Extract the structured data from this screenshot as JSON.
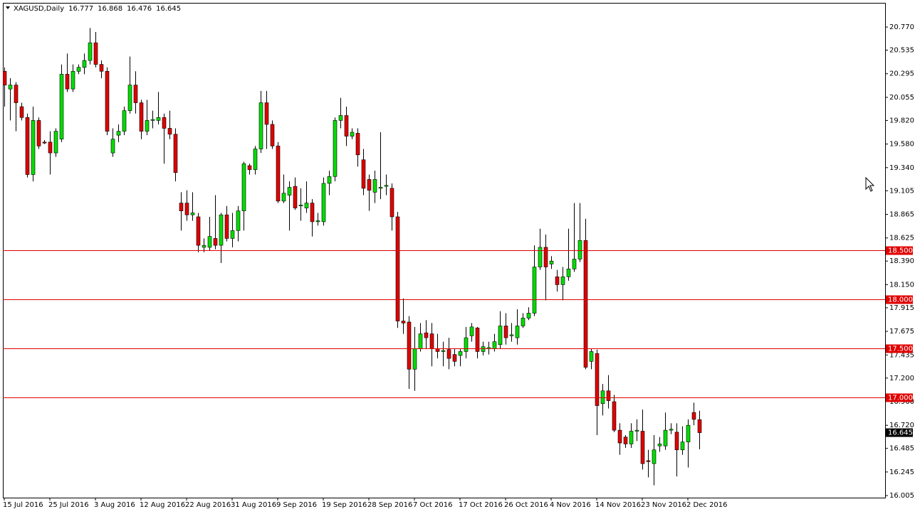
{
  "chart_data": {
    "type": "candlestick",
    "title": "XAGUSD,Daily",
    "categories": [
      "15 Jul 2016",
      null,
      null,
      null,
      null,
      null,
      null,
      null,
      "25 Jul 2016",
      null,
      null,
      null,
      null,
      null,
      null,
      null,
      "3 Aug 2016",
      null,
      null,
      null,
      null,
      null,
      null,
      null,
      "12 Aug 2016",
      null,
      null,
      null,
      null,
      null,
      null,
      null,
      "22 Aug 2016",
      null,
      null,
      null,
      null,
      null,
      null,
      null,
      "31 Aug 2016",
      null,
      null,
      null,
      null,
      null,
      null,
      null,
      "9 Sep 2016",
      null,
      null,
      null,
      null,
      null,
      null,
      null,
      "19 Sep 2016",
      null,
      null,
      null,
      null,
      null,
      null,
      null,
      "28 Sep 2016",
      null,
      null,
      null,
      null,
      null,
      null,
      null,
      "7 Oct 2016",
      null,
      null,
      null,
      null,
      null,
      null,
      null,
      "17 Oct 2016",
      null,
      null,
      null,
      null,
      null,
      null,
      null,
      "26 Oct 2016",
      null,
      null,
      null,
      null,
      null,
      null,
      null,
      "4 Nov 2016",
      null,
      null,
      null,
      null,
      null,
      null,
      null,
      "14 Nov 2016",
      null,
      null,
      null,
      null,
      null,
      null,
      null,
      "23 Nov 2016",
      null,
      null,
      null,
      null,
      null,
      null,
      null,
      "2 Dec 2016",
      null,
      null
    ],
    "open": [
      20.32,
      20.14,
      20.18,
      19.96,
      19.85,
      19.27,
      19.82,
      19.6,
      19.6,
      19.49,
      19.63,
      20.29,
      20.14,
      20.32,
      20.36,
      20.43,
      20.61,
      20.39,
      20.32,
      19.49,
      19.67,
      19.71,
      19.92,
      20.18,
      20.0,
      19.71,
      19.82,
      19.82,
      19.85,
      19.74,
      19.68,
      18.98,
      18.98,
      18.86,
      18.84,
      18.53,
      18.53,
      18.62,
      18.55,
      18.86,
      18.62,
      18.7,
      18.9,
      19.36,
      19.32,
      19.53,
      20.0,
      19.78,
      19.56,
      19.0,
      19.06,
      19.15,
      18.95,
      18.93,
      18.98,
      18.79,
      18.79,
      19.18,
      19.25,
      19.82,
      19.87,
      19.66,
      19.69,
      19.42,
      19.22,
      19.09,
      19.13,
      19.15,
      19.13,
      18.84,
      17.78,
      17.77,
      17.29,
      17.5,
      17.66,
      17.65,
      17.5,
      17.47,
      17.49,
      17.44,
      17.43,
      17.47,
      17.63,
      17.71,
      17.47,
      17.5,
      17.5,
      17.54,
      17.73,
      17.63,
      17.61,
      17.73,
      17.81,
      17.86,
      18.33,
      18.53,
      18.36,
      18.23,
      18.15,
      18.23,
      18.31,
      18.41,
      18.6,
      17.37,
      17.45,
      16.94,
      17.07,
      16.96,
      16.67,
      16.6,
      16.53,
      16.66,
      16.66,
      16.36,
      16.33,
      16.51,
      16.51,
      16.67,
      16.65,
      16.47,
      16.55,
      16.85,
      16.777
    ],
    "high": [
      20.36,
      20.25,
      20.21,
      20.0,
      19.89,
      19.96,
      19.85,
      19.62,
      19.71,
      19.74,
      20.39,
      20.5,
      20.39,
      20.39,
      20.5,
      20.76,
      20.72,
      20.43,
      20.36,
      19.74,
      19.78,
      19.96,
      20.47,
      20.32,
      20.03,
      20.03,
      19.92,
      20.11,
      19.89,
      19.92,
      19.74,
      19.09,
      19.11,
      19.09,
      18.88,
      18.62,
      18.84,
      19.06,
      18.88,
      18.95,
      18.88,
      18.95,
      19.4,
      19.38,
      19.56,
      20.12,
      20.12,
      19.82,
      19.6,
      19.27,
      19.2,
      19.24,
      19.13,
      19.2,
      19.02,
      18.88,
      19.24,
      19.31,
      19.85,
      20.05,
      19.96,
      19.74,
      19.74,
      19.53,
      19.27,
      19.31,
      19.7,
      19.27,
      19.18,
      18.89,
      18.01,
      17.83,
      17.72,
      17.76,
      17.79,
      17.76,
      17.65,
      17.57,
      17.61,
      17.5,
      17.5,
      17.72,
      17.76,
      17.72,
      17.57,
      17.57,
      17.65,
      17.88,
      17.86,
      17.76,
      17.9,
      17.86,
      17.92,
      18.55,
      18.72,
      18.66,
      18.44,
      18.3,
      18.33,
      18.72,
      18.98,
      18.98,
      18.82,
      17.5,
      17.49,
      17.14,
      17.23,
      17.03,
      16.74,
      16.62,
      16.74,
      16.78,
      16.88,
      16.47,
      16.62,
      16.6,
      16.85,
      16.74,
      16.74,
      16.71,
      16.78,
      16.95,
      16.868
    ],
    "low": [
      19.96,
      19.82,
      19.71,
      19.82,
      19.24,
      19.2,
      19.53,
      19.58,
      19.27,
      19.45,
      19.6,
      20.11,
      20.11,
      20.29,
      20.29,
      20.39,
      20.36,
      20.25,
      19.67,
      19.45,
      19.6,
      19.67,
      19.89,
      19.89,
      19.63,
      19.67,
      19.74,
      19.78,
      19.38,
      19.63,
      19.2,
      18.7,
      18.8,
      18.8,
      18.48,
      18.48,
      18.5,
      18.51,
      18.37,
      18.59,
      18.53,
      18.59,
      18.7,
      19.27,
      19.27,
      19.49,
      19.53,
      19.53,
      18.98,
      18.98,
      18.7,
      18.91,
      18.8,
      18.88,
      18.64,
      18.75,
      18.75,
      19.06,
      19.2,
      19.74,
      19.56,
      19.63,
      19.35,
      19.06,
      18.9,
      18.98,
      19.02,
      19.06,
      18.7,
      17.71,
      17.65,
      17.09,
      17.07,
      17.47,
      17.5,
      17.32,
      17.4,
      17.32,
      17.29,
      17.32,
      17.32,
      17.4,
      17.57,
      17.4,
      17.43,
      17.44,
      17.47,
      17.5,
      17.54,
      17.57,
      17.54,
      17.71,
      17.79,
      17.83,
      18.3,
      17.99,
      18.31,
      18.08,
      17.99,
      18.19,
      18.28,
      18.38,
      17.29,
      17.29,
      16.62,
      16.82,
      16.89,
      16.65,
      16.42,
      16.49,
      16.49,
      16.56,
      16.27,
      16.19,
      16.11,
      16.45,
      16.47,
      16.63,
      16.2,
      16.42,
      16.29,
      16.72,
      16.476
    ],
    "close": [
      20.18,
      20.18,
      20.0,
      19.85,
      19.27,
      19.82,
      19.56,
      19.59,
      19.49,
      19.71,
      20.29,
      20.14,
      20.32,
      20.36,
      20.43,
      20.61,
      20.39,
      20.32,
      19.71,
      19.63,
      19.71,
      19.92,
      20.18,
      20.0,
      19.71,
      19.82,
      19.83,
      19.85,
      19.74,
      19.68,
      19.29,
      18.9,
      18.86,
      18.88,
      18.55,
      18.55,
      18.64,
      18.55,
      18.86,
      18.62,
      18.7,
      18.9,
      19.38,
      19.32,
      19.53,
      20.0,
      19.78,
      19.56,
      19.0,
      19.08,
      19.14,
      18.93,
      18.96,
      18.98,
      18.79,
      18.8,
      19.18,
      19.25,
      19.82,
      19.87,
      19.66,
      19.7,
      19.47,
      19.13,
      19.11,
      19.22,
      19.14,
      19.16,
      18.84,
      17.78,
      17.76,
      17.29,
      17.5,
      17.65,
      17.61,
      17.5,
      17.47,
      17.48,
      17.4,
      17.37,
      17.47,
      17.61,
      17.72,
      17.47,
      17.52,
      17.51,
      17.57,
      17.73,
      17.61,
      17.64,
      17.73,
      17.81,
      17.86,
      18.33,
      18.53,
      18.33,
      18.39,
      18.15,
      18.23,
      18.31,
      18.41,
      18.6,
      17.31,
      17.47,
      16.92,
      17.07,
      16.97,
      16.67,
      16.54,
      16.53,
      16.66,
      16.67,
      16.33,
      16.35,
      16.47,
      16.53,
      16.67,
      16.68,
      16.47,
      16.55,
      16.72,
      16.78,
      16.645
    ],
    "up_color": "#00dd00",
    "down_color": "#e00000",
    "level_color": "#e00000",
    "ylim": [
      15.984,
      21.016
    ],
    "yticks": [
      {
        "value": 16.005,
        "label": "16.005"
      },
      {
        "value": 16.245,
        "label": "16.245"
      },
      {
        "value": 16.485,
        "label": "16.485"
      },
      {
        "value": 16.72,
        "label": "16.720"
      },
      {
        "value": 16.96,
        "label": "16.960"
      },
      {
        "value": 17.2,
        "label": "17.200"
      },
      {
        "value": 17.435,
        "label": "17.435"
      },
      {
        "value": 17.675,
        "label": "17.675"
      },
      {
        "value": 17.915,
        "label": "17.915"
      },
      {
        "value": 18.15,
        "label": "18.150"
      },
      {
        "value": 18.39,
        "label": "18.390"
      },
      {
        "value": 18.625,
        "label": "18.625"
      },
      {
        "value": 18.865,
        "label": "18.865"
      },
      {
        "value": 19.105,
        "label": "19.105"
      },
      {
        "value": 19.34,
        "label": "19.340"
      },
      {
        "value": 19.58,
        "label": "19.580"
      },
      {
        "value": 19.82,
        "label": "19.820"
      },
      {
        "value": 20.055,
        "label": "20.055"
      },
      {
        "value": 20.295,
        "label": "20.295"
      },
      {
        "value": 20.535,
        "label": "20.535"
      },
      {
        "value": 20.77,
        "label": "20.770"
      }
    ],
    "levels": [
      {
        "value": 18.5,
        "label": "18.500"
      },
      {
        "value": 18,
        "label": "18.000"
      },
      {
        "value": 17.5,
        "label": "17.500"
      },
      {
        "value": 17,
        "label": "17.000"
      }
    ]
  }
}
